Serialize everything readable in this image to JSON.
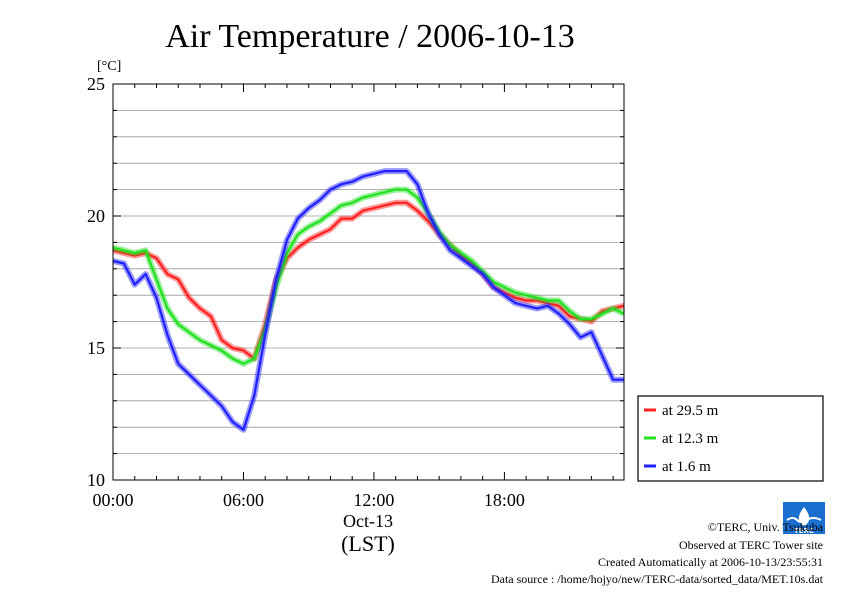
{
  "chart_data": {
    "type": "line",
    "title": "Air Temperature / 2006-10-13",
    "ylabel": "[°C]",
    "xlabel": "(LST)",
    "date_label": "Oct-13",
    "ylim": [
      10,
      25
    ],
    "xlim": [
      0,
      23.5
    ],
    "y_ticks": [
      10,
      15,
      20,
      25
    ],
    "x_ticks": [
      {
        "hour": 0,
        "label": "00:00"
      },
      {
        "hour": 6,
        "label": "06:00"
      },
      {
        "hour": 12,
        "label": "12:00"
      },
      {
        "hour": 18,
        "label": "18:00"
      }
    ],
    "grid": true,
    "legend_position": "right-bottom",
    "series": [
      {
        "name": "at 29.5 m",
        "color": "#ff2020",
        "x": [
          0.0,
          0.5,
          1.0,
          1.5,
          2.0,
          2.5,
          3.0,
          3.5,
          4.0,
          4.5,
          5.0,
          5.5,
          6.0,
          6.5,
          7.0,
          7.5,
          8.0,
          8.5,
          9.0,
          9.5,
          10.0,
          10.5,
          11.0,
          11.5,
          12.0,
          12.5,
          13.0,
          13.5,
          14.0,
          14.5,
          15.0,
          15.5,
          16.0,
          16.5,
          17.0,
          17.5,
          18.0,
          18.5,
          19.0,
          19.5,
          20.0,
          20.5,
          21.0,
          21.5,
          22.0,
          22.5,
          23.0,
          23.5
        ],
        "y": [
          18.7,
          18.6,
          18.5,
          18.6,
          18.4,
          17.8,
          17.6,
          16.9,
          16.5,
          16.2,
          15.3,
          15.0,
          14.9,
          14.6,
          15.9,
          17.6,
          18.4,
          18.8,
          19.1,
          19.3,
          19.5,
          19.9,
          19.9,
          20.2,
          20.3,
          20.4,
          20.5,
          20.5,
          20.2,
          19.8,
          19.3,
          18.9,
          18.5,
          18.2,
          17.8,
          17.3,
          17.1,
          16.9,
          16.8,
          16.8,
          16.7,
          16.6,
          16.2,
          16.1,
          16.0,
          16.4,
          16.5,
          16.6
        ]
      },
      {
        "name": "at 12.3 m",
        "color": "#20e020",
        "x": [
          0.0,
          0.5,
          1.0,
          1.5,
          2.0,
          2.5,
          3.0,
          3.5,
          4.0,
          4.5,
          5.0,
          5.5,
          6.0,
          6.5,
          7.0,
          7.5,
          8.0,
          8.5,
          9.0,
          9.5,
          10.0,
          10.5,
          11.0,
          11.5,
          12.0,
          12.5,
          13.0,
          13.5,
          14.0,
          14.5,
          15.0,
          15.5,
          16.0,
          16.5,
          17.0,
          17.5,
          18.0,
          18.5,
          19.0,
          19.5,
          20.0,
          20.5,
          21.0,
          21.5,
          22.0,
          22.5,
          23.0,
          23.5
        ],
        "y": [
          18.8,
          18.7,
          18.6,
          18.7,
          17.6,
          16.5,
          15.9,
          15.6,
          15.3,
          15.1,
          14.9,
          14.6,
          14.4,
          14.6,
          15.7,
          17.3,
          18.6,
          19.3,
          19.6,
          19.8,
          20.1,
          20.4,
          20.5,
          20.7,
          20.8,
          20.9,
          21.0,
          21.0,
          20.7,
          20.1,
          19.4,
          18.9,
          18.6,
          18.3,
          17.9,
          17.5,
          17.3,
          17.1,
          17.0,
          16.9,
          16.8,
          16.8,
          16.4,
          16.1,
          16.1,
          16.3,
          16.5,
          16.3
        ]
      },
      {
        "name": "at 1.6 m",
        "color": "#2020ff",
        "x": [
          0.0,
          0.5,
          1.0,
          1.5,
          2.0,
          2.5,
          3.0,
          3.5,
          4.0,
          4.5,
          5.0,
          5.5,
          6.0,
          6.5,
          7.0,
          7.5,
          8.0,
          8.5,
          9.0,
          9.5,
          10.0,
          10.5,
          11.0,
          11.5,
          12.0,
          12.5,
          13.0,
          13.5,
          14.0,
          14.5,
          15.0,
          15.5,
          16.0,
          16.5,
          17.0,
          17.5,
          18.0,
          18.5,
          19.0,
          19.5,
          20.0,
          20.5,
          21.0,
          21.5,
          22.0,
          22.5,
          23.0,
          23.5
        ],
        "y": [
          18.3,
          18.2,
          17.4,
          17.8,
          16.9,
          15.5,
          14.4,
          14.0,
          13.6,
          13.2,
          12.8,
          12.2,
          11.9,
          13.2,
          15.5,
          17.6,
          19.1,
          19.9,
          20.3,
          20.6,
          21.0,
          21.2,
          21.3,
          21.5,
          21.6,
          21.7,
          21.7,
          21.7,
          21.2,
          20.1,
          19.3,
          18.7,
          18.4,
          18.1,
          17.8,
          17.3,
          17.0,
          16.7,
          16.6,
          16.5,
          16.6,
          16.3,
          15.9,
          15.4,
          15.6,
          14.7,
          13.8,
          13.8
        ]
      }
    ]
  },
  "footer": {
    "copyright": "©TERC, Univ. Tsukuba",
    "observed": "Observed at TERC Tower site",
    "created": "Created Automatically at 2006-10-13/23:55:31",
    "source": "Data source : /home/hojyo/new/TERC-data/sorted_data/MET.10s.dat",
    "logo_text": "TERC"
  }
}
